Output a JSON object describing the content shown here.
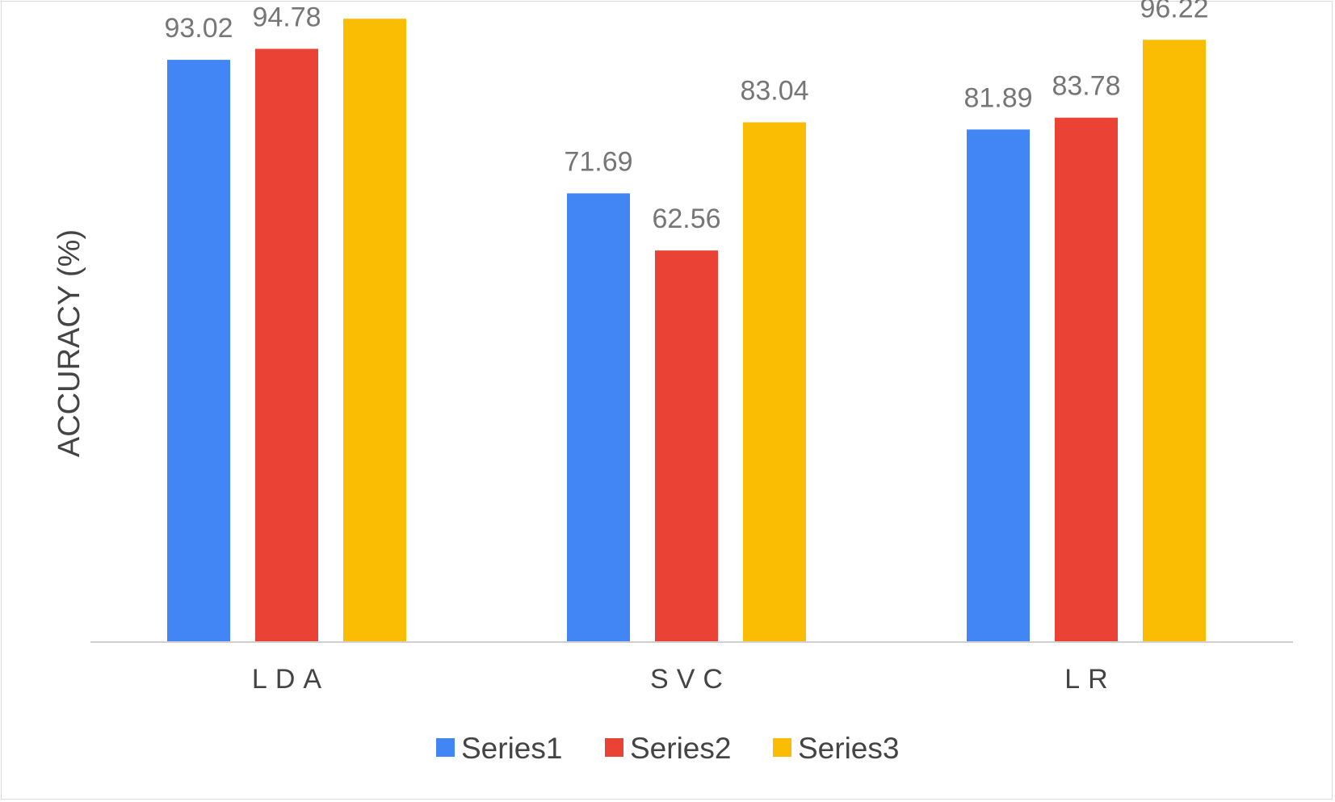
{
  "chart_data": {
    "type": "bar",
    "categories": [
      "LDA",
      "SVC",
      "LR"
    ],
    "series": [
      {
        "name": "Series1",
        "values": [
          93.02,
          71.69,
          81.89
        ],
        "color": "#4285F4"
      },
      {
        "name": "Series2",
        "values": [
          94.78,
          62.56,
          83.78
        ],
        "color": "#EA4335"
      },
      {
        "name": "Series3",
        "values": [
          99.59,
          83.04,
          96.22
        ],
        "color": "#FBBC04"
      }
    ],
    "title": "",
    "xlabel": "",
    "ylabel": "ACCURACY (%)",
    "ylim": [
      0,
      100
    ],
    "grid": false,
    "legend_position": "bottom",
    "data_labels": true
  }
}
